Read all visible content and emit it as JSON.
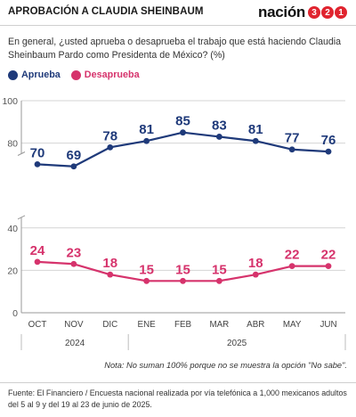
{
  "header": {
    "title": "APROBACIÓN A CLAUDIA SHEINBAUM",
    "brand_word": "nación",
    "brand_digits": [
      "3",
      "2",
      "1"
    ]
  },
  "question": "En general, ¿usted aprueba o desaprueba el trabajo que está haciendo Claudia Sheinbaum Pardo como Presidenta de México? (%)",
  "note": "Nota: No suman 100% porque no se muestra la opción \"No sabe\".",
  "source": "Fuente: El Financiero / Encuesta nacional realizada por vía telefónica a 1,000 mexicanos adultos del 5 al 9 y del 19 al 23 de junio de 2025.",
  "chart_data": {
    "type": "line",
    "categories": [
      "OCT",
      "NOV",
      "DIC",
      "ENE",
      "FEB",
      "MAR",
      "ABR",
      "MAY",
      "JUN"
    ],
    "year_groups": [
      {
        "label": "2024",
        "from": 0,
        "to": 2
      },
      {
        "label": "2025",
        "from": 3,
        "to": 8
      }
    ],
    "series": [
      {
        "name": "Aprueba",
        "color": "#1f3a7a",
        "values": [
          70,
          69,
          78,
          81,
          85,
          83,
          81,
          77,
          76
        ]
      },
      {
        "name": "Desaprueba",
        "color": "#d6336c",
        "values": [
          24,
          23,
          18,
          15,
          15,
          15,
          18,
          22,
          22
        ]
      }
    ],
    "yticks": [
      0,
      20,
      40,
      80,
      100
    ],
    "ylim": [
      0,
      100
    ],
    "axis_break": [
      45,
      75
    ],
    "grid": true,
    "legend": "top-left"
  }
}
